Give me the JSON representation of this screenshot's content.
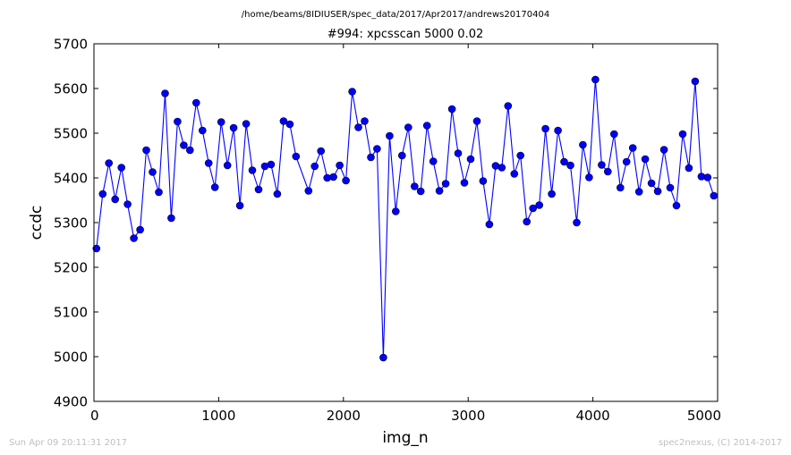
{
  "suptitle": "/home/beams/8IDIUSER/spec_data/2017/Apr2017/andrews20170404",
  "footer_left": "Sun Apr 09 20:11:31 2017",
  "footer_right": "spec2nexus, (C) 2014-2017",
  "chart_data": {
    "type": "line",
    "title": "#994: xpcsscan 5000 0.02",
    "xlabel": "img_n",
    "ylabel": "ccdc",
    "xlim": [
      0,
      5000
    ],
    "ylim": [
      4900,
      5700
    ],
    "xticks": [
      0,
      1000,
      2000,
      3000,
      4000,
      5000
    ],
    "yticks": [
      4900,
      5000,
      5100,
      5200,
      5300,
      5400,
      5500,
      5600,
      5700
    ],
    "grid": false,
    "line_color": "#0000ff",
    "marker": "circle",
    "series": [
      {
        "x": [
          20,
          70,
          120,
          170,
          220,
          270,
          320,
          370,
          420,
          470,
          520,
          570,
          620,
          670,
          720,
          770,
          820,
          870,
          920,
          970,
          1020,
          1070,
          1120,
          1170,
          1220,
          1270,
          1320,
          1370,
          1420,
          1470,
          1520,
          1570,
          1620,
          1720,
          1770,
          1820,
          1870,
          1920,
          1970,
          2020,
          2070,
          2120,
          2170,
          2220,
          2270,
          2320,
          2370,
          2420,
          2470,
          2520,
          2570,
          2620,
          2670,
          2720,
          2770,
          2820,
          2870,
          2920,
          2970,
          3020,
          3070,
          3120,
          3170,
          3220,
          3270,
          3320,
          3370,
          3420,
          3470,
          3520,
          3570,
          3620,
          3670,
          3720,
          3770,
          3820,
          3870,
          3920,
          3970,
          4020,
          4070,
          4120,
          4170,
          4220,
          4270,
          4320,
          4370,
          4420,
          4470,
          4520,
          4570,
          4620,
          4670,
          4720,
          4770,
          4820,
          4870,
          4920,
          4970
        ],
        "y": [
          5242,
          5364,
          5433,
          5352,
          5423,
          5341,
          5265,
          5284,
          5462,
          5413,
          5368,
          5589,
          5310,
          5526,
          5473,
          5462,
          5568,
          5506,
          5433,
          5379,
          5525,
          5428,
          5512,
          5338,
          5521,
          5417,
          5374,
          5426,
          5430,
          5364,
          5527,
          5520,
          5448,
          5371,
          5426,
          5460,
          5400,
          5402,
          5428,
          5394,
          5593,
          5513,
          5527,
          5446,
          5465,
          4998,
          5494,
          5325,
          5450,
          5513,
          5381,
          5370,
          5517,
          5437,
          5371,
          5387,
          5554,
          5455,
          5389,
          5442,
          5527,
          5393,
          5296,
          5427,
          5423,
          5561,
          5409,
          5450,
          5302,
          5332,
          5339,
          5510,
          5364,
          5506,
          5436,
          5428,
          5300,
          5474,
          5401,
          5620,
          5429,
          5414,
          5498,
          5378,
          5436,
          5467,
          5369,
          5442,
          5388,
          5370,
          5463,
          5378,
          5338,
          5498,
          5422,
          5616,
          5403,
          5401,
          5360
        ]
      }
    ]
  }
}
